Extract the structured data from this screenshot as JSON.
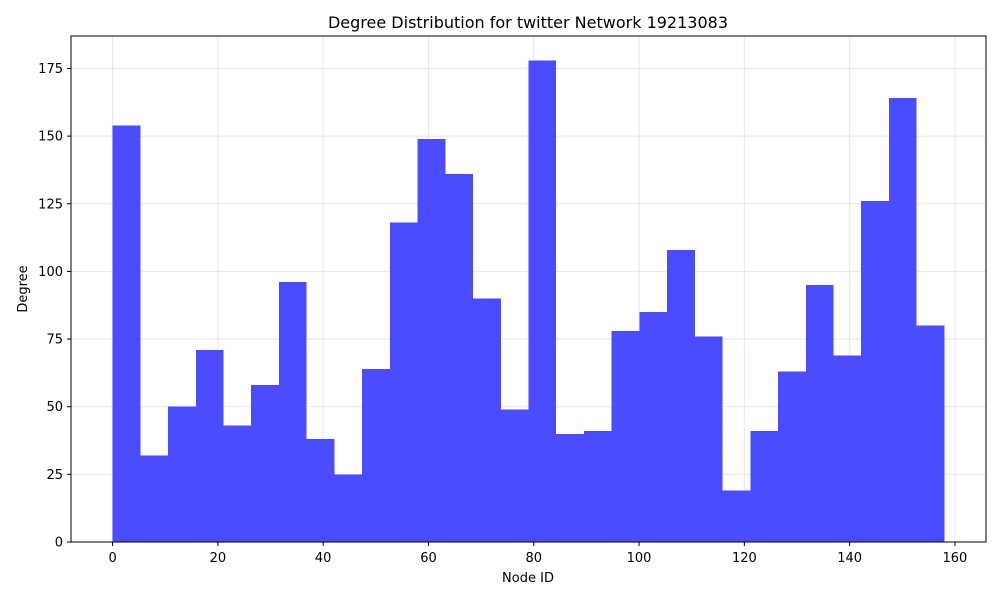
{
  "chart_data": {
    "type": "bar",
    "title": "Degree Distribution for twitter Network 19213083",
    "xlabel": "Node ID",
    "ylabel": "Degree",
    "bar_color": "#4B4BFF",
    "grid": true,
    "xlim": [
      -7.9,
      165.9
    ],
    "ylim": [
      0,
      187
    ],
    "x_ticks": [
      0,
      20,
      40,
      60,
      80,
      100,
      120,
      140,
      160
    ],
    "y_ticks": [
      0,
      25,
      50,
      75,
      100,
      125,
      150,
      175
    ],
    "bins": [
      {
        "x0": 0.0,
        "x1": 5.27,
        "value": 154
      },
      {
        "x0": 5.27,
        "x1": 10.53,
        "value": 32
      },
      {
        "x0": 10.53,
        "x1": 15.8,
        "value": 50
      },
      {
        "x0": 15.8,
        "x1": 21.07,
        "value": 71
      },
      {
        "x0": 21.07,
        "x1": 26.33,
        "value": 43
      },
      {
        "x0": 26.33,
        "x1": 31.6,
        "value": 58
      },
      {
        "x0": 31.6,
        "x1": 36.87,
        "value": 96
      },
      {
        "x0": 36.87,
        "x1": 42.13,
        "value": 38
      },
      {
        "x0": 42.13,
        "x1": 47.4,
        "value": 25
      },
      {
        "x0": 47.4,
        "x1": 52.67,
        "value": 64
      },
      {
        "x0": 52.67,
        "x1": 57.93,
        "value": 118
      },
      {
        "x0": 57.93,
        "x1": 63.2,
        "value": 149
      },
      {
        "x0": 63.2,
        "x1": 68.47,
        "value": 136
      },
      {
        "x0": 68.47,
        "x1": 73.73,
        "value": 90
      },
      {
        "x0": 73.73,
        "x1": 79.0,
        "value": 49
      },
      {
        "x0": 79.0,
        "x1": 84.27,
        "value": 178
      },
      {
        "x0": 84.27,
        "x1": 89.53,
        "value": 40
      },
      {
        "x0": 89.53,
        "x1": 94.8,
        "value": 41
      },
      {
        "x0": 94.8,
        "x1": 100.07,
        "value": 78
      },
      {
        "x0": 100.07,
        "x1": 105.33,
        "value": 85
      },
      {
        "x0": 105.33,
        "x1": 110.6,
        "value": 108
      },
      {
        "x0": 110.6,
        "x1": 115.87,
        "value": 76
      },
      {
        "x0": 115.87,
        "x1": 121.13,
        "value": 19
      },
      {
        "x0": 121.13,
        "x1": 126.4,
        "value": 41
      },
      {
        "x0": 126.4,
        "x1": 131.67,
        "value": 63
      },
      {
        "x0": 131.67,
        "x1": 136.93,
        "value": 95
      },
      {
        "x0": 136.93,
        "x1": 142.2,
        "value": 69
      },
      {
        "x0": 142.2,
        "x1": 147.47,
        "value": 126
      },
      {
        "x0": 147.47,
        "x1": 152.73,
        "value": 164
      },
      {
        "x0": 152.73,
        "x1": 158.0,
        "value": 80
      }
    ]
  }
}
